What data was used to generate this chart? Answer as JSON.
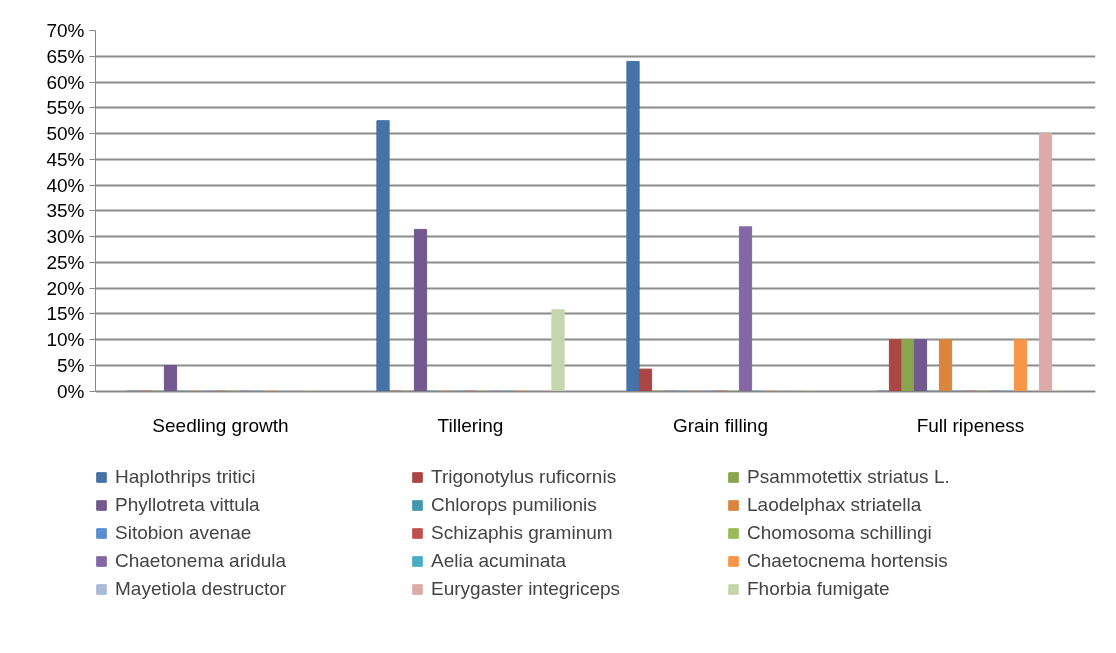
{
  "chart_data": {
    "type": "bar",
    "categories": [
      "Seedling growth",
      "Tillering",
      "Grain filling",
      "Full ripeness"
    ],
    "series": [
      {
        "name": "Haplothrips tritici",
        "color": "#4572a7",
        "values": [
          0,
          52.5,
          64,
          0
        ]
      },
      {
        "name": "Trigonotylus ruficornis",
        "color": "#aa4643",
        "values": [
          0,
          0,
          4.3,
          10
        ]
      },
      {
        "name": "Psammotettix striatus L.",
        "color": "#89a54e",
        "values": [
          0,
          0,
          0,
          10
        ]
      },
      {
        "name": "Phyllotreta vittula",
        "color": "#71588f",
        "values": [
          5,
          31.4,
          0,
          10
        ]
      },
      {
        "name": "Chlorops pumilionis",
        "color": "#4198af",
        "values": [
          0,
          0,
          0,
          0
        ]
      },
      {
        "name": "Laodelphax striatella",
        "color": "#db843d",
        "values": [
          0,
          0,
          0,
          10
        ]
      },
      {
        "name": "Sitobion avenae",
        "color": "#5b8dd3",
        "values": [
          0,
          0,
          0,
          0
        ]
      },
      {
        "name": "Schizaphis graminum",
        "color": "#c0504d",
        "values": [
          0,
          0,
          0,
          0
        ]
      },
      {
        "name": "Chomosoma schillingi",
        "color": "#9bbb59",
        "values": [
          0,
          0,
          0,
          0
        ]
      },
      {
        "name": "Chaetonema aridula",
        "color": "#8468a6",
        "values": [
          0,
          0,
          31.9,
          0
        ]
      },
      {
        "name": "Aelia acuminata",
        "color": "#4bacc6",
        "values": [
          0,
          0,
          0,
          0
        ]
      },
      {
        "name": "Chaetocnema hortensis",
        "color": "#f79646",
        "values": [
          0,
          0,
          0,
          10
        ]
      },
      {
        "name": "Mayetiola destructor",
        "color": "#aabad7",
        "values": [
          0,
          0,
          0,
          0
        ]
      },
      {
        "name": "Eurygaster integriceps",
        "color": "#dbaaa9",
        "values": [
          0,
          0,
          0,
          50
        ]
      },
      {
        "name": "Fhorbia fumigate",
        "color": "#c6d6ac",
        "values": [
          0,
          15.8,
          0,
          0
        ]
      }
    ],
    "ylim": [
      0,
      70
    ],
    "yticks": [
      {
        "value": 0,
        "label": "0%"
      },
      {
        "value": 5,
        "label": "5%"
      },
      {
        "value": 10,
        "label": "10%"
      },
      {
        "value": 15,
        "label": "15%"
      },
      {
        "value": 20,
        "label": "20%"
      },
      {
        "value": 25,
        "label": "25%"
      },
      {
        "value": 30,
        "label": "30%"
      },
      {
        "value": 35,
        "label": "35%"
      },
      {
        "value": 40,
        "label": "40%"
      },
      {
        "value": 45,
        "label": "45%"
      },
      {
        "value": 50,
        "label": "50%"
      },
      {
        "value": 55,
        "label": "55%"
      },
      {
        "value": 60,
        "label": "60%"
      },
      {
        "value": 65,
        "label": "65%"
      },
      {
        "value": 70,
        "label": "70%"
      }
    ],
    "grid": "y",
    "legend": "bottom"
  }
}
